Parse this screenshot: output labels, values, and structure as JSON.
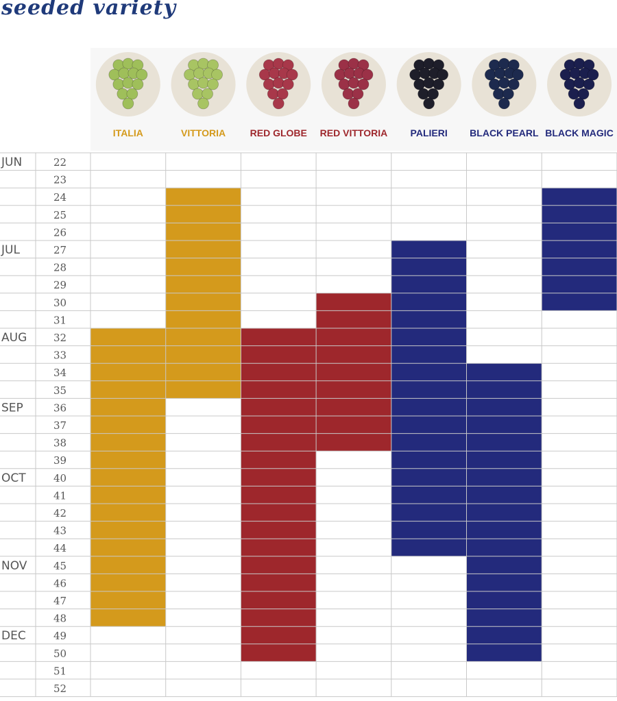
{
  "title": "seeded variety",
  "chart_data": {
    "type": "heatmap",
    "title": "seeded variety",
    "weeks": [
      22,
      23,
      24,
      25,
      26,
      27,
      28,
      29,
      30,
      31,
      32,
      33,
      34,
      35,
      36,
      37,
      38,
      39,
      40,
      41,
      42,
      43,
      44,
      45,
      46,
      47,
      48,
      49,
      50,
      51,
      52
    ],
    "months": [
      {
        "label": "JUN",
        "week": 22
      },
      {
        "label": "JUL",
        "week": 27
      },
      {
        "label": "AUG",
        "week": 32
      },
      {
        "label": "SEP",
        "week": 36
      },
      {
        "label": "OCT",
        "week": 40
      },
      {
        "label": "NOV",
        "week": 45
      },
      {
        "label": "DEC",
        "week": 49
      }
    ],
    "series": [
      {
        "name": "ITALIA",
        "color": "#d49a1c",
        "start_week": 32,
        "end_week": 48,
        "grape_color": "#9fbf5a"
      },
      {
        "name": "VITTORIA",
        "color": "#d49a1c",
        "start_week": 24,
        "end_week": 35,
        "grape_color": "#a8c463"
      },
      {
        "name": "RED GLOBE",
        "color": "#9e272c",
        "start_week": 32,
        "end_week": 50,
        "grape_color": "#a8384a"
      },
      {
        "name": "RED VITTORIA",
        "color": "#9e272c",
        "start_week": 30,
        "end_week": 38,
        "grape_color": "#9b3147"
      },
      {
        "name": "PALIERI",
        "color": "#232a7c",
        "start_week": 27,
        "end_week": 44,
        "grape_color": "#1e1e2a"
      },
      {
        "name": "BLACK PEARL",
        "color": "#232a7c",
        "start_week": 34,
        "end_week": 50,
        "grape_color": "#1d2a4e"
      },
      {
        "name": "BLACK MAGIC",
        "color": "#232a7c",
        "start_week": 24,
        "end_week": 30,
        "grape_color": "#1b1f4e"
      }
    ]
  }
}
